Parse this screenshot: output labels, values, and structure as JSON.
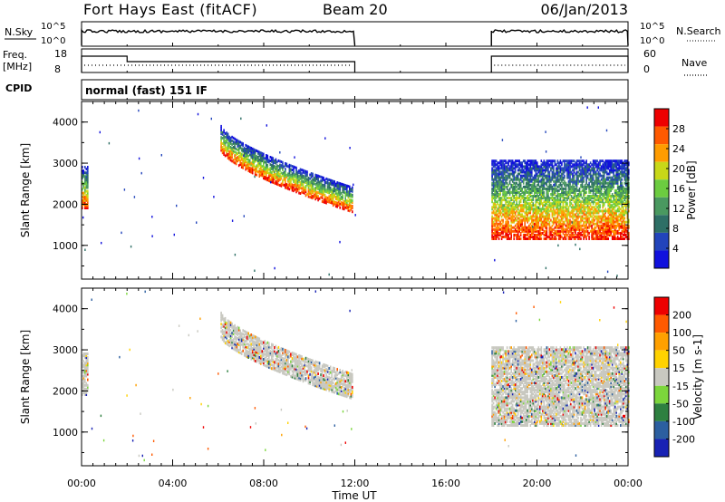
{
  "header": {
    "station": "Fort Hays East (fitACF)",
    "beam": "Beam 20",
    "date": "06/Jan/2013"
  },
  "labels": {
    "nsky": "N.Sky",
    "nsearch": "N.Search",
    "freq_line1": "Freq.",
    "freq_line2": "[MHz]",
    "nave": "Nave",
    "cpid": "CPID",
    "mode": "normal (fast) 151 IF"
  },
  "noise_axis_ticks": [
    "10^5",
    "10^0"
  ],
  "freq_axis_ticks": [
    "18",
    "8"
  ],
  "nave_axis_ticks": [
    "60",
    "0"
  ],
  "chart_data": [
    {
      "type": "heatmap",
      "panel": "power",
      "xlabel": "",
      "ylabel": "Slant Range [km]",
      "x_ticks": [
        "00:00",
        "04:00",
        "08:00",
        "12:00",
        "16:00",
        "20:00",
        "00:00"
      ],
      "x_range_hours": [
        0,
        24
      ],
      "y_ticks": [
        "1000",
        "2000",
        "3000",
        "4000"
      ],
      "y_range_km": [
        180,
        4500
      ],
      "colorbar_label": "Power [dB]",
      "colorbar_ticks": [
        "4",
        "8",
        "12",
        "16",
        "20",
        "24",
        "28"
      ],
      "colorbar_range": [
        0,
        32
      ],
      "colorbar_colors": [
        "#1111dd",
        "#2244bb",
        "#2e6f66",
        "#4a9960",
        "#6ccc40",
        "#c8d818",
        "#ff9c00",
        "#ff5a00",
        "#ee0000"
      ],
      "echo_regions": [
        {
          "name": "early morning",
          "t_start": 0.0,
          "t_end": 0.3,
          "r_low": 1900,
          "r_high": 2900
        },
        {
          "name": "morning arc",
          "t_start": 6.1,
          "t_end": 11.9,
          "r_low_start": 3300,
          "r_low_end": 1800,
          "r_high_start": 3900,
          "r_high_end": 2400
        },
        {
          "name": "evening",
          "t_start": 18.0,
          "t_end": 24.0,
          "r_low": 1150,
          "r_high": 3050
        }
      ]
    },
    {
      "type": "heatmap",
      "panel": "velocity",
      "xlabel": "Time UT",
      "ylabel": "Slant Range [km]",
      "x_ticks": [
        "00:00",
        "04:00",
        "08:00",
        "12:00",
        "16:00",
        "20:00",
        "00:00"
      ],
      "x_range_hours": [
        0,
        24
      ],
      "y_ticks": [
        "1000",
        "2000",
        "3000",
        "4000"
      ],
      "y_range_km": [
        180,
        4500
      ],
      "colorbar_label": "Velocity [m s-1]",
      "colorbar_ticks": [
        "200",
        "100",
        "50",
        "15",
        "-15",
        "-50",
        "-100",
        "-200"
      ],
      "colorbar_colors": [
        "#1822b4",
        "#2c5fa0",
        "#2e8040",
        "#7cd63c",
        "#c8c8c0",
        "#ffd200",
        "#ffa000",
        "#ff5a00",
        "#ee0000"
      ],
      "echo_regions": [
        {
          "name": "early morning",
          "t_start": 0.0,
          "t_end": 0.3,
          "r_low": 1900,
          "r_high": 2900
        },
        {
          "name": "morning arc",
          "t_start": 6.1,
          "t_end": 11.9,
          "r_low_start": 3300,
          "r_low_end": 1800,
          "r_high_start": 3900,
          "r_high_end": 2400
        },
        {
          "name": "evening",
          "t_start": 18.0,
          "t_end": 24.0,
          "r_low": 1150,
          "r_high": 3050
        }
      ]
    }
  ],
  "operation_segments_hours": [
    [
      0,
      12
    ],
    [
      18,
      24
    ]
  ],
  "freq_step_hour": 2.0
}
